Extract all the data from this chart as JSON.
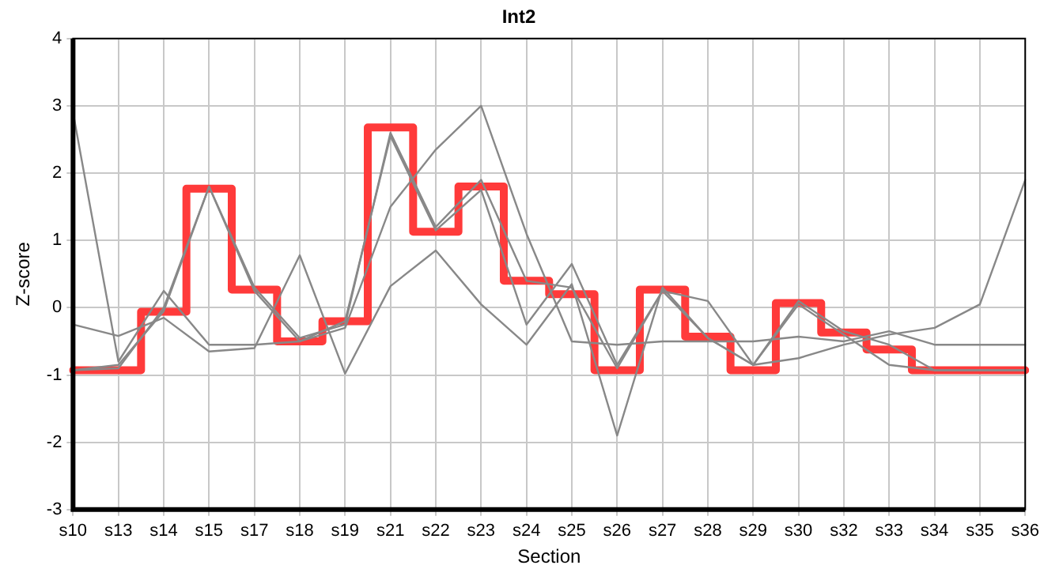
{
  "chart_data": {
    "type": "line",
    "title": "Int2",
    "xlabel": "Section",
    "ylabel": "Z-score",
    "categories": [
      "s10",
      "s13",
      "s14",
      "s15",
      "s17",
      "s18",
      "s19",
      "s21",
      "s22",
      "s23",
      "s24",
      "s25",
      "s26",
      "s27",
      "s28",
      "s29",
      "s30",
      "s32",
      "s33",
      "s34",
      "s35",
      "s36"
    ],
    "series": [
      {
        "type": "line",
        "color": "#888888",
        "values": [
          -0.25,
          -0.42,
          -0.15,
          -0.65,
          -0.6,
          0.78,
          -0.98,
          0.32,
          0.85,
          0.05,
          -0.55,
          0.35,
          -1.9,
          0.3,
          -0.45,
          -0.85,
          -0.75,
          -0.55,
          -0.4,
          -0.3,
          0.05,
          1.9
        ]
      },
      {
        "type": "line",
        "color": "#888888",
        "values": [
          2.9,
          -0.8,
          0.25,
          -0.55,
          -0.55,
          -0.5,
          -0.3,
          1.5,
          2.35,
          3.0,
          1.1,
          -0.5,
          -0.55,
          -0.5,
          -0.5,
          -0.5,
          -0.43,
          -0.5,
          -0.35,
          -0.55,
          -0.55,
          -0.55
        ]
      },
      {
        "type": "line",
        "color": "#888888",
        "values": [
          -0.93,
          -0.85,
          -0.05,
          1.8,
          0.3,
          -0.45,
          -0.25,
          2.6,
          1.2,
          1.9,
          0.4,
          0.3,
          -0.9,
          0.25,
          -0.45,
          -0.85,
          0.1,
          -0.35,
          -0.55,
          -0.93,
          -0.93,
          -0.93
        ]
      },
      {
        "type": "line",
        "color": "#888888",
        "values": [
          -0.93,
          -0.9,
          0.0,
          1.8,
          0.25,
          -0.5,
          -0.2,
          2.55,
          1.15,
          1.75,
          -0.25,
          0.65,
          -0.85,
          0.25,
          0.1,
          -0.85,
          0.05,
          -0.4,
          -0.85,
          -0.93,
          -0.93,
          -0.93
        ]
      },
      {
        "type": "step",
        "color": "#ff3a3a",
        "values": [
          -0.93,
          -0.93,
          -0.06,
          1.77,
          0.27,
          -0.5,
          -0.2,
          2.68,
          1.13,
          1.8,
          0.4,
          0.2,
          -0.93,
          0.27,
          -0.43,
          -0.93,
          0.07,
          -0.37,
          -0.62,
          -0.93,
          -0.93,
          -0.93
        ]
      }
    ],
    "ylim": [
      -3,
      4
    ],
    "yticks": [
      -3,
      -2,
      -1,
      0,
      1,
      2,
      3,
      4
    ],
    "grid": true,
    "legend": false,
    "marker": "none"
  }
}
